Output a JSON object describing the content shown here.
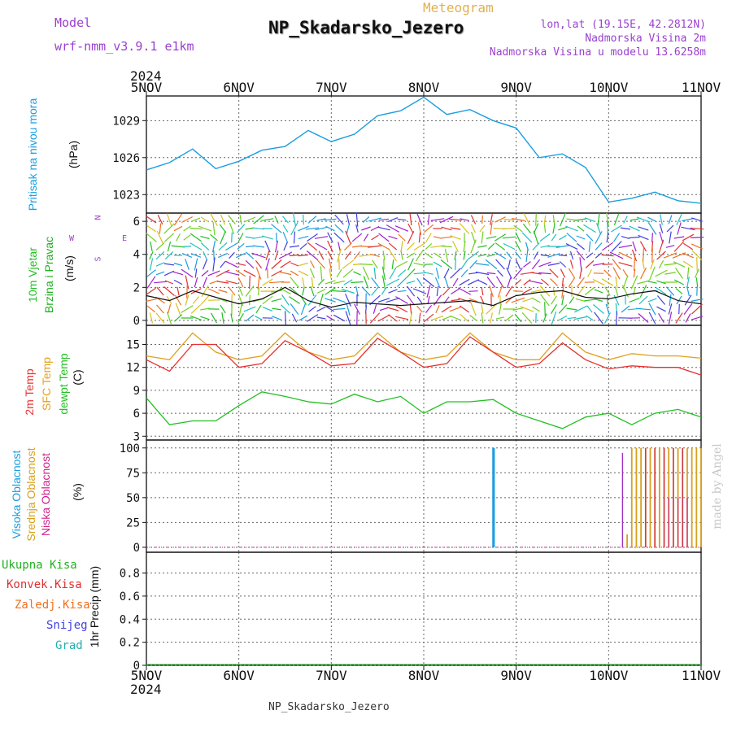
{
  "header": {
    "model_label": "Model",
    "model_name": "wrf-nmm_v3.9.1 e1km",
    "meteogram_label": "Meteogram",
    "station": "NP_Skadarsko_Jezero",
    "lonlat": "lon,lat (19.15E, 42.2812N)",
    "elevation": "Nadmorska Visina 2m",
    "model_elevation": "Nadmorska Visina u modelu 13.6258m",
    "year_top": "2024"
  },
  "footer": {
    "station": "NP_Skadarsko_Jezero",
    "year_bottom": "2024"
  },
  "watermark": "made by Angel",
  "colors": {
    "pressure": "#1a9ee0",
    "wind_label": "#22c022",
    "wind_speed_label": "#22b022",
    "compass": "#a040d0",
    "temp2m": "#e83030",
    "sfc_temp": "#e0a020",
    "dewpt": "#22c022",
    "high_cloud": "#1a9ee0",
    "mid_cloud": "#d8a020",
    "low_cloud": "#d0208a",
    "total_precip": "#22b022",
    "conv_precip": "#e03030",
    "frozen_precip": "#f07020",
    "snow": "#4040e0",
    "graupel": "#20b0b0",
    "header_purple": "#9a40d0",
    "meteogram": "#e0b050"
  },
  "compass": {
    "n": "N",
    "s": "S",
    "e": "E",
    "w": "W"
  },
  "chart_data": [
    {
      "type": "line",
      "panel": "pressure",
      "ylabel_name": "Pritisak na nivou mora",
      "ylabel_unit": "(hPa)",
      "x_ticks": [
        "5NOV",
        "6NOV",
        "7NOV",
        "8NOV",
        "9NOV",
        "10NOV",
        "11NOV"
      ],
      "y_ticks": [
        1023,
        1026,
        1029
      ],
      "ylim": [
        1021.5,
        1031
      ],
      "x": [
        0,
        0.25,
        0.5,
        0.75,
        1,
        1.25,
        1.5,
        1.75,
        2,
        2.25,
        2.5,
        2.75,
        3,
        3.25,
        3.5,
        3.75,
        4,
        4.25,
        4.5,
        4.75,
        5,
        5.25,
        5.5,
        5.75,
        6
      ],
      "series": [
        {
          "values": [
            1025,
            1025.6,
            1026.7,
            1025.1,
            1025.7,
            1026.6,
            1026.9,
            1028.2,
            1027.3,
            1027.9,
            1029.4,
            1029.8,
            1030.9,
            1029.5,
            1029.9,
            1029.0,
            1028.4,
            1026.0,
            1026.3,
            1025.2,
            1022.4,
            1022.7,
            1023.2,
            1022.5,
            1022.3
          ]
        }
      ]
    },
    {
      "type": "line",
      "panel": "wind",
      "ylabel_name": "10m Vjetar",
      "ylabel_sub": "Brzina i Pravac",
      "ylabel_unit": "(m/s)",
      "y_ticks": [
        0,
        2,
        4,
        6
      ],
      "ylim": [
        -0.3,
        6.5
      ],
      "x": [
        0,
        0.25,
        0.5,
        0.75,
        1,
        1.25,
        1.5,
        1.75,
        2,
        2.25,
        2.5,
        2.75,
        3,
        3.25,
        3.5,
        3.75,
        4,
        4.25,
        4.5,
        4.75,
        5,
        5.25,
        5.5,
        5.75,
        6
      ],
      "series": [
        {
          "values": [
            1.5,
            1.2,
            1.8,
            1.4,
            1.0,
            1.3,
            2.0,
            1.2,
            0.8,
            1.1,
            1.0,
            0.9,
            1.0,
            1.1,
            1.2,
            0.9,
            1.5,
            1.7,
            1.8,
            1.4,
            1.3,
            1.6,
            1.8,
            1.2,
            1.0
          ]
        }
      ]
    },
    {
      "type": "line",
      "panel": "temperature",
      "ylabel_2m": "2m Temp",
      "ylabel_sfc": "SFC Temp",
      "ylabel_dew": "dewpt Temp",
      "ylabel_unit": "(C)",
      "y_ticks": [
        3,
        6,
        9,
        12,
        15
      ],
      "ylim": [
        2.5,
        17.5
      ],
      "x": [
        0,
        0.25,
        0.5,
        0.75,
        1,
        1.25,
        1.5,
        1.75,
        2,
        2.25,
        2.5,
        2.75,
        3,
        3.25,
        3.5,
        3.75,
        4,
        4.25,
        4.5,
        4.75,
        5,
        5.25,
        5.5,
        5.75,
        6
      ],
      "series": [
        {
          "name": "2m Temp",
          "values": [
            13.0,
            11.5,
            15.0,
            15.0,
            12.0,
            12.5,
            15.5,
            14.0,
            12.2,
            12.5,
            15.8,
            14.0,
            12.0,
            12.5,
            16.0,
            14.0,
            12.0,
            12.5,
            15.2,
            13.0,
            11.8,
            12.2,
            12.0,
            12.0,
            11.0
          ]
        },
        {
          "name": "SFC Temp",
          "values": [
            13.5,
            13.0,
            16.5,
            14.0,
            13.0,
            13.5,
            16.5,
            14.0,
            13.0,
            13.5,
            16.5,
            14.0,
            13.0,
            13.5,
            16.5,
            14.0,
            13.0,
            13.0,
            16.5,
            14.0,
            13.0,
            13.8,
            13.5,
            13.5,
            13.2
          ]
        },
        {
          "name": "dewpt Temp",
          "values": [
            8.0,
            4.5,
            5.0,
            5.0,
            7.0,
            8.8,
            8.2,
            7.5,
            7.2,
            8.5,
            7.5,
            8.2,
            6.0,
            7.5,
            7.5,
            7.8,
            6.0,
            5.0,
            4.0,
            5.5,
            6.0,
            4.5,
            6.0,
            6.5,
            5.5
          ]
        }
      ]
    },
    {
      "type": "bar",
      "panel": "cloud",
      "ylabel_high": "Visoka Oblacnost",
      "ylabel_mid": "Srednja Oblacnost",
      "ylabel_low": "Niska Oblacnost",
      "ylabel_unit": "(%)",
      "y_ticks": [
        0,
        25,
        50,
        75,
        100
      ],
      "ylim": [
        -5,
        108
      ],
      "series": [
        {
          "name": "high",
          "x": [
            3.75,
            3.76
          ],
          "values": [
            100,
            100
          ]
        },
        {
          "name": "low",
          "x": [
            5.15,
            5.95
          ],
          "values": [
            95,
            100
          ]
        },
        {
          "name": "mid",
          "x": [
            5.2,
            5.25,
            5.3,
            5.35,
            5.4,
            5.45,
            5.5,
            5.55,
            5.6,
            5.65,
            5.7,
            5.75,
            5.8,
            5.85,
            5.9,
            5.95,
            6.0
          ],
          "values": [
            13,
            100,
            100,
            100,
            100,
            100,
            100,
            100,
            100,
            100,
            100,
            100,
            100,
            100,
            100,
            100,
            100
          ]
        },
        {
          "name": "low-red",
          "x": [
            5.4,
            5.5,
            5.6,
            5.7,
            5.8
          ],
          "values": [
            100,
            100,
            100,
            100,
            100
          ]
        },
        {
          "name": "low-magenta",
          "x": [
            5.65,
            5.75,
            5.85
          ],
          "values": [
            50,
            50,
            50
          ]
        }
      ]
    },
    {
      "type": "bar",
      "panel": "precipitation",
      "ylabel_unit": "1hr Precip (mm)",
      "legend": [
        "Ukupna Kisa",
        "Konvek.Kisa",
        "Zaledj.Kisa",
        "Snijeg",
        "Grad"
      ],
      "y_ticks": [
        0,
        0.2,
        0.4,
        0.6,
        0.8
      ],
      "ylim": [
        0,
        0.98
      ],
      "values": [
        0
      ]
    }
  ]
}
